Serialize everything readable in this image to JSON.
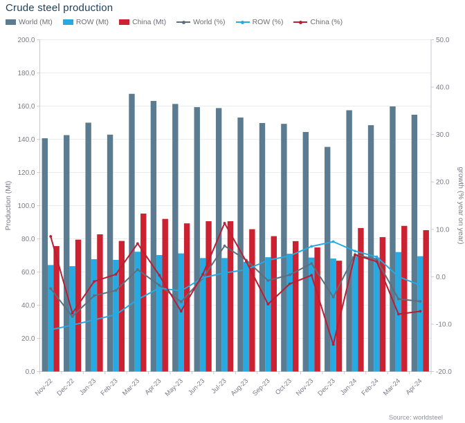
{
  "title": "Crude steel production",
  "source": "Source: worldsteel",
  "colors": {
    "title": "#1e3d59",
    "background": "#ffffff",
    "grid": "#ebebf0",
    "axis_line": "#c8c8d2",
    "axis_text": "#7a7a88",
    "source_text": "#8f8f9c",
    "world_bar": "#5a7b90",
    "row_bar": "#27a9e1",
    "china_bar": "#cb2130",
    "world_line": "#5f6e7c",
    "row_line": "#27a9e1",
    "china_line": "#b91e35"
  },
  "chart_data": {
    "type": "bar",
    "subtype": "grouped bars with overlaid lines (dual axis combo)",
    "title": "Crude steel production",
    "categories": [
      "Nov-22",
      "Dec-22",
      "Jan-23",
      "Feb-23",
      "Mar-23",
      "Apr-23",
      "May-23",
      "Jun-23",
      "Jul-23",
      "Aug-23",
      "Sep-23",
      "Oct-23",
      "Nov-23",
      "Dec-23",
      "Jan-24",
      "Feb-24",
      "Mar-24",
      "Apr-24"
    ],
    "series": [
      {
        "name": "World (Mt)",
        "type": "bar",
        "axis": "left",
        "color_key": "world_bar",
        "values": [
          140.6,
          142.5,
          150.0,
          142.8,
          167.4,
          163.1,
          161.3,
          159.4,
          158.8,
          153.1,
          149.8,
          149.3,
          144.4,
          135.4,
          157.5,
          148.5,
          159.8,
          154.8
        ]
      },
      {
        "name": "ROW (Mt)",
        "type": "bar",
        "axis": "left",
        "color_key": "row_bar",
        "values": [
          64.2,
          63.5,
          67.7,
          67.3,
          72.2,
          70.2,
          71.2,
          68.4,
          68.4,
          66.1,
          68.9,
          71.0,
          68.7,
          68.1,
          69.5,
          68.7,
          72.0,
          69.5
        ]
      },
      {
        "name": "China (Mt)",
        "type": "bar",
        "axis": "left",
        "color_key": "china_bar",
        "values": [
          75.6,
          79.5,
          82.7,
          78.7,
          95.2,
          92.0,
          89.3,
          90.6,
          90.6,
          85.8,
          81.6,
          78.6,
          74.8,
          66.8,
          86.5,
          81.0,
          87.8,
          85.2
        ]
      },
      {
        "name": "World (%)",
        "type": "line",
        "axis": "right",
        "color_key": "world_line",
        "values": [
          -2.5,
          -8.4,
          -4.0,
          -2.9,
          1.5,
          -1.8,
          -5.3,
          -0.3,
          6.5,
          3.5,
          -0.8,
          0.4,
          2.8,
          -4.3,
          4.7,
          3.6,
          -4.7,
          -5.2
        ]
      },
      {
        "name": "ROW (%)",
        "type": "line",
        "axis": "right",
        "color_key": "row_line",
        "values": [
          -11.2,
          -10.2,
          -9.1,
          -8.0,
          -4.8,
          -2.4,
          -3.0,
          -0.2,
          0.8,
          1.5,
          3.5,
          4.4,
          6.4,
          7.4,
          5.4,
          4.2,
          0.0,
          -1.8
        ]
      },
      {
        "name": "China (%)",
        "type": "line",
        "axis": "right",
        "color_key": "china_line",
        "values": [
          8.5,
          -7.7,
          -1.0,
          0.5,
          7.0,
          0.3,
          -7.3,
          0.5,
          11.3,
          3.2,
          -5.8,
          -1.5,
          0.3,
          -14.3,
          4.6,
          3.2,
          -7.9,
          -7.3
        ]
      }
    ],
    "left_axis": {
      "label": "Production (Mt)",
      "min": 0,
      "max": 200,
      "step": 20,
      "tick_decimals": 1
    },
    "right_axis": {
      "label": "growth (% year on year)",
      "min": -20,
      "max": 50,
      "step": 10,
      "tick_decimals": 1
    },
    "legend_position": "top",
    "grid": true,
    "x_label_rotation_deg": -45
  }
}
